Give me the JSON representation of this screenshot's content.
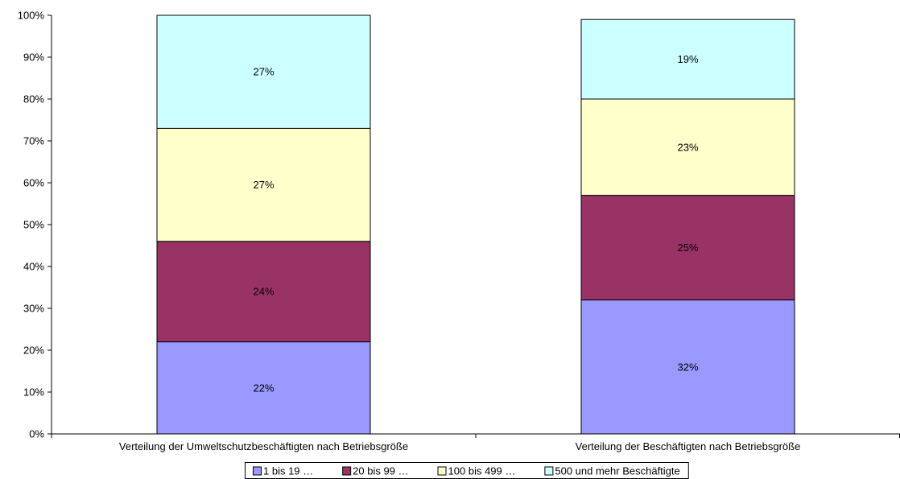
{
  "chart_data": {
    "type": "bar",
    "stacked": true,
    "percent_stacked": true,
    "categories": [
      "Verteilung der Umweltschutzbeschäftigten nach Betriebsgröße",
      "Verteilung der Beschäftigten nach Betriebsgröße"
    ],
    "series": [
      {
        "name": "1 bis 19 …",
        "values": [
          22,
          32
        ],
        "labels": [
          "22%",
          "32%"
        ],
        "color": "#9999ff"
      },
      {
        "name": "20 bis 99 …",
        "values": [
          24,
          25
        ],
        "labels": [
          "24%",
          "25%"
        ],
        "color": "#993366"
      },
      {
        "name": "100 bis 499 …",
        "values": [
          27,
          23
        ],
        "labels": [
          "27%",
          "23%"
        ],
        "color": "#ffffcc"
      },
      {
        "name": "500 und mehr Beschäftigte",
        "values": [
          27,
          19
        ],
        "labels": [
          "27%",
          "19%"
        ],
        "color": "#ccffff"
      }
    ],
    "y_ticks": [
      "0%",
      "10%",
      "20%",
      "30%",
      "40%",
      "50%",
      "60%",
      "70%",
      "80%",
      "90%",
      "100%"
    ],
    "ylim": [
      0,
      100
    ],
    "grid": false,
    "legend_position": "bottom",
    "title": "",
    "xlabel": "",
    "ylabel": ""
  }
}
